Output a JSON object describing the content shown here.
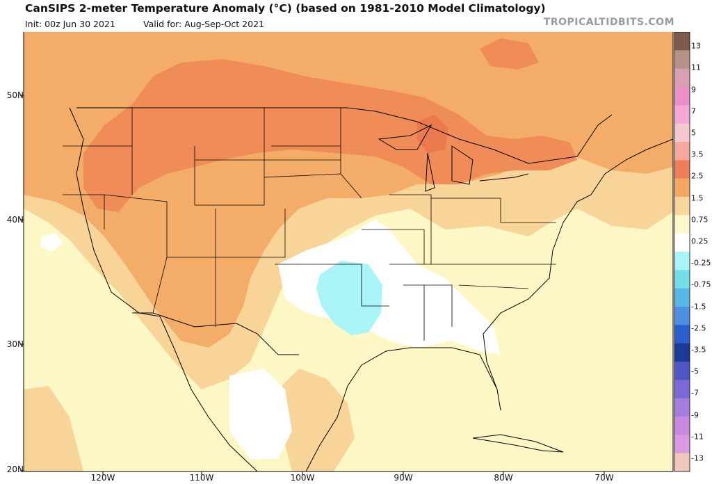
{
  "header": {
    "title": "CanSIPS 2-meter Temperature Anomaly (°C) (based on 1981-2010 Model Climatology)",
    "init": "Init: 00z Jun 30 2021",
    "valid": "Valid for: Aug-Sep-Oct 2021",
    "brand": "TROPICALTIDBITS.COM"
  },
  "map": {
    "latitude_labels": [
      "50N",
      "40N",
      "30N",
      "20N"
    ],
    "longitude_labels": [
      "120W",
      "110W",
      "100W",
      "90W",
      "80W",
      "70W"
    ]
  },
  "colorbar": {
    "labels": [
      "13",
      "11",
      "9",
      "7",
      "5",
      "3.5",
      "2.5",
      "1.5",
      "0.75",
      "0.25",
      "-0.25",
      "-0.75",
      "-1.5",
      "-2.5",
      "-3.5",
      "-5",
      "-7",
      "-9",
      "-11",
      "-13"
    ],
    "colors": [
      "#7d5a4c",
      "#b69187",
      "#d9a0b4",
      "#ec8ec8",
      "#f4a8d6",
      "#f3c8cf",
      "#f6a7a0",
      "#ef7f5b",
      "#f1a863",
      "#f8d59a",
      "#fdf8c9",
      "#ffffff",
      "#a9f4f7",
      "#74dde6",
      "#57b8e8",
      "#4f8fe2",
      "#2a5fc9",
      "#1d3b96",
      "#4f55c4",
      "#7b6ad6",
      "#a57ddf",
      "#c889e0",
      "#dc99e3",
      "#f1c6bd"
    ]
  }
}
